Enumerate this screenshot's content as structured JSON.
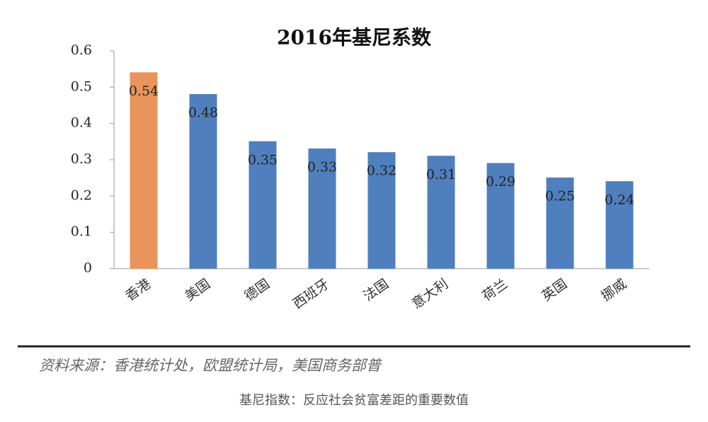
{
  "chart_data": {
    "type": "bar",
    "title": "2016年基尼系数",
    "categories": [
      "香港",
      "美国",
      "德国",
      "西班牙",
      "法国",
      "意大利",
      "荷兰",
      "英国",
      "挪威"
    ],
    "values": [
      0.54,
      0.48,
      0.35,
      0.33,
      0.32,
      0.31,
      0.29,
      0.25,
      0.24
    ],
    "colors": [
      "#e8945a",
      "#4f7fbc",
      "#4f7fbc",
      "#4f7fbc",
      "#4f7fbc",
      "#4f7fbc",
      "#4f7fbc",
      "#4f7fbc",
      "#4f7fbc"
    ],
    "ylim": [
      0,
      0.6
    ],
    "yticks": [
      0,
      0.1,
      0.2,
      0.3,
      0.4,
      0.5,
      0.6
    ],
    "grid": false,
    "source": "资料来源：香港统计处，欧盟统计局，美国商务部普",
    "caption": "基尼指数：反应社会贫富差距的重要数值"
  }
}
